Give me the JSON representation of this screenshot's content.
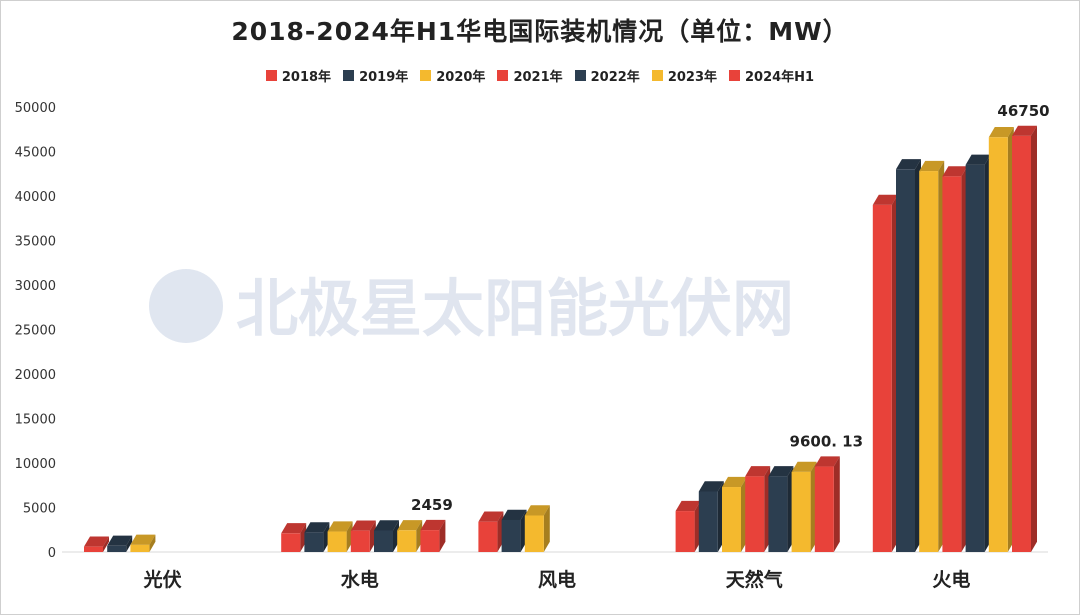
{
  "chart_data": {
    "type": "bar",
    "title": "2018-2024年H1华电国际装机情况（单位：MW）",
    "categories": [
      "光伏",
      "水电",
      "风电",
      "天然气",
      "火电"
    ],
    "ylim": [
      0,
      50000
    ],
    "yticks": [
      0,
      5000,
      10000,
      15000,
      20000,
      25000,
      30000,
      35000,
      40000,
      45000,
      50000
    ],
    "grid": false,
    "legend_position": "top",
    "series": [
      {
        "name": "2018年",
        "color": "#e8423a",
        "values": [
          600,
          2100,
          3400,
          4600,
          39000
        ]
      },
      {
        "name": "2019年",
        "color": "#2c3e50",
        "values": [
          700,
          2200,
          3600,
          6800,
          43000
        ]
      },
      {
        "name": "2020年",
        "color": "#f4b92e",
        "values": [
          800,
          2300,
          4100,
          7300,
          42800
        ]
      },
      {
        "name": "2021年",
        "color": "#e8423a",
        "values": [
          null,
          2400,
          null,
          8500,
          42200
        ]
      },
      {
        "name": "2022年",
        "color": "#2c3e50",
        "values": [
          null,
          2420,
          null,
          8500,
          43500
        ]
      },
      {
        "name": "2023年",
        "color": "#f4b92e",
        "values": [
          null,
          2440,
          null,
          9000,
          46600
        ]
      },
      {
        "name": "2024年H1",
        "color": "#e8423a",
        "values": [
          null,
          2459,
          null,
          9600.13,
          46750
        ]
      }
    ],
    "annotations": [
      {
        "category": "水电",
        "text": "2459"
      },
      {
        "category": "天然气",
        "text": "9600. 13"
      },
      {
        "category": "火电",
        "text": "46750"
      }
    ]
  },
  "watermark": "北极星太阳能光伏网"
}
